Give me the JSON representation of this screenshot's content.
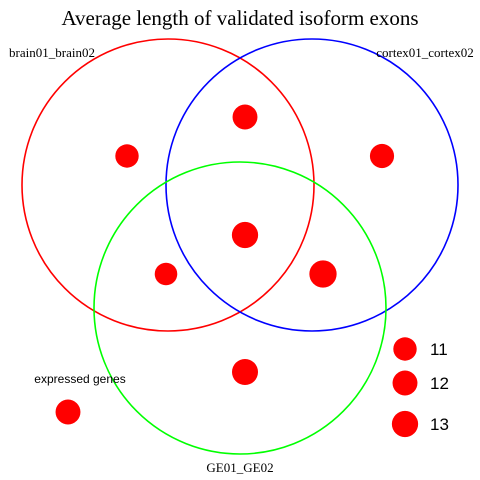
{
  "chart_data": {
    "type": "venn-bubble",
    "title": "Average length of validated isoform exons",
    "sets": [
      {
        "label": "brain01_brain02",
        "color": "#ff0000"
      },
      {
        "label": "cortex01_cortex02",
        "color": "#0000ff"
      },
      {
        "label": "GE01_GE02",
        "color": "#00ff00"
      }
    ],
    "regions": [
      {
        "region": "brain01_brain02 only",
        "value": 11
      },
      {
        "region": "brain01_brain02 & cortex01_cortex02",
        "value": 12
      },
      {
        "region": "cortex01_cortex02 only",
        "value": 11.5
      },
      {
        "region": "brain01_brain02 & cortex01_cortex02 & GE01_GE02",
        "value": 13
      },
      {
        "region": "brain01_brain02 & GE01_GE02",
        "value": 10.5
      },
      {
        "region": "cortex01_cortex02 & GE01_GE02",
        "value": 13.8
      },
      {
        "region": "GE01_GE02 only",
        "value": 12.8
      },
      {
        "region": "expressed genes",
        "value": 12
      }
    ],
    "outside_label": "expressed genes",
    "bubble_color": "#ff0000",
    "size_legend": [
      11,
      12,
      13
    ]
  }
}
